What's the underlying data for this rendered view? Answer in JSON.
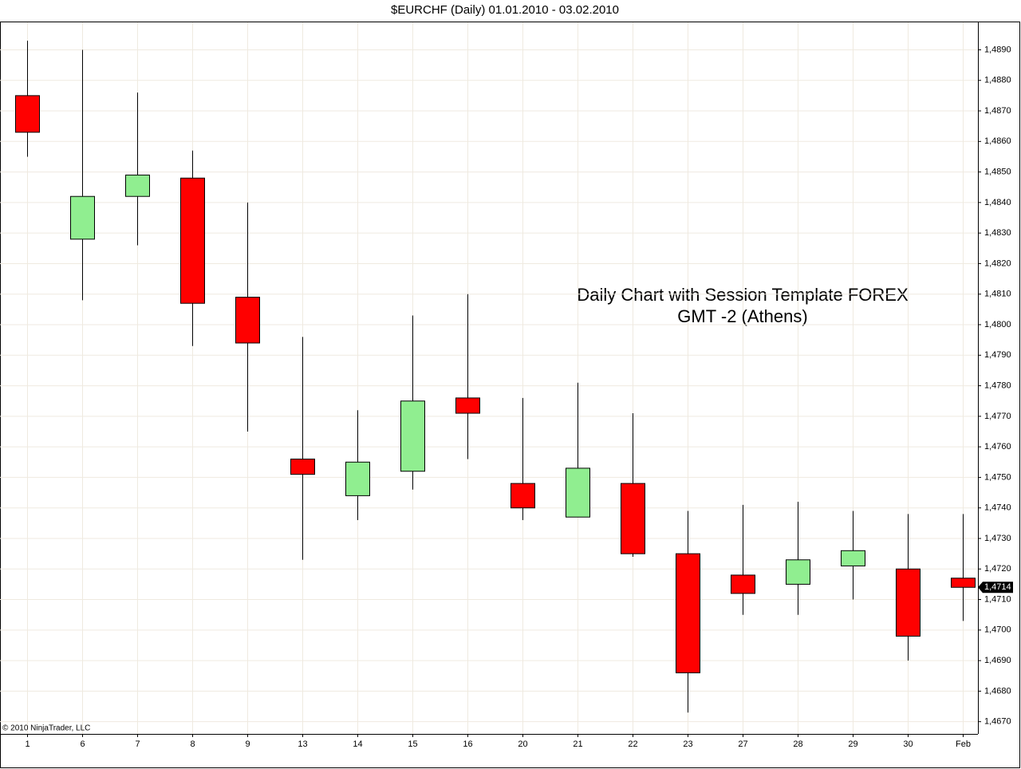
{
  "chart_data": {
    "type": "candlestick",
    "title": "$EURCHF (Daily)  01.01.2010 - 03.02.2010",
    "annotation": [
      "Daily Chart with Session Template FOREX",
      "GMT -2 (Athens)"
    ],
    "copyright": "© 2010 NinjaTrader, LLC",
    "categories": [
      "1",
      "6",
      "7",
      "8",
      "9",
      "13",
      "14",
      "15",
      "16",
      "20",
      "21",
      "22",
      "23",
      "27",
      "28",
      "29",
      "30",
      "Feb"
    ],
    "open": [
      1.4875,
      1.4828,
      1.4842,
      1.4848,
      1.4809,
      1.4756,
      1.4744,
      1.4752,
      1.4776,
      1.4748,
      1.4737,
      1.4748,
      1.4725,
      1.4718,
      1.4715,
      1.4721,
      1.472,
      1.4717
    ],
    "high": [
      1.4893,
      1.489,
      1.4876,
      1.4857,
      1.484,
      1.4796,
      1.4772,
      1.4803,
      1.481,
      1.4776,
      1.4781,
      1.4771,
      1.4739,
      1.4741,
      1.4742,
      1.4739,
      1.4738,
      1.4738
    ],
    "low": [
      1.4855,
      1.4808,
      1.4826,
      1.4793,
      1.4765,
      1.4723,
      1.4736,
      1.4746,
      1.4756,
      1.4736,
      1.4737,
      1.4724,
      1.4673,
      1.4705,
      1.4705,
      1.471,
      1.469,
      1.4703
    ],
    "close": [
      1.4863,
      1.4842,
      1.4849,
      1.4807,
      1.4794,
      1.4751,
      1.4755,
      1.4775,
      1.4771,
      1.474,
      1.4753,
      1.4725,
      1.4686,
      1.4712,
      1.4723,
      1.4726,
      1.4698,
      1.4714
    ],
    "up_color": "#90ee90",
    "down_color": "#ff0000",
    "last_price": {
      "value": 1.4714,
      "label": "1,4714"
    },
    "ylim": [
      1.4666,
      1.4899
    ],
    "yticks": [
      {
        "value": 1.467,
        "label": "1,4670"
      },
      {
        "value": 1.468,
        "label": "1,4680"
      },
      {
        "value": 1.469,
        "label": "1,4690"
      },
      {
        "value": 1.47,
        "label": "1,4700"
      },
      {
        "value": 1.471,
        "label": "1,4710"
      },
      {
        "value": 1.472,
        "label": "1,4720"
      },
      {
        "value": 1.473,
        "label": "1,4730"
      },
      {
        "value": 1.474,
        "label": "1,4740"
      },
      {
        "value": 1.475,
        "label": "1,4750"
      },
      {
        "value": 1.476,
        "label": "1,4760"
      },
      {
        "value": 1.477,
        "label": "1,4770"
      },
      {
        "value": 1.478,
        "label": "1,4780"
      },
      {
        "value": 1.479,
        "label": "1,4790"
      },
      {
        "value": 1.48,
        "label": "1,4800"
      },
      {
        "value": 1.481,
        "label": "1,4810"
      },
      {
        "value": 1.482,
        "label": "1,4820"
      },
      {
        "value": 1.483,
        "label": "1,4830"
      },
      {
        "value": 1.484,
        "label": "1,4840"
      },
      {
        "value": 1.485,
        "label": "1,4850"
      },
      {
        "value": 1.486,
        "label": "1,4860"
      },
      {
        "value": 1.487,
        "label": "1,4870"
      },
      {
        "value": 1.488,
        "label": "1,4880"
      },
      {
        "value": 1.489,
        "label": "1,4890"
      }
    ],
    "grid": true
  }
}
